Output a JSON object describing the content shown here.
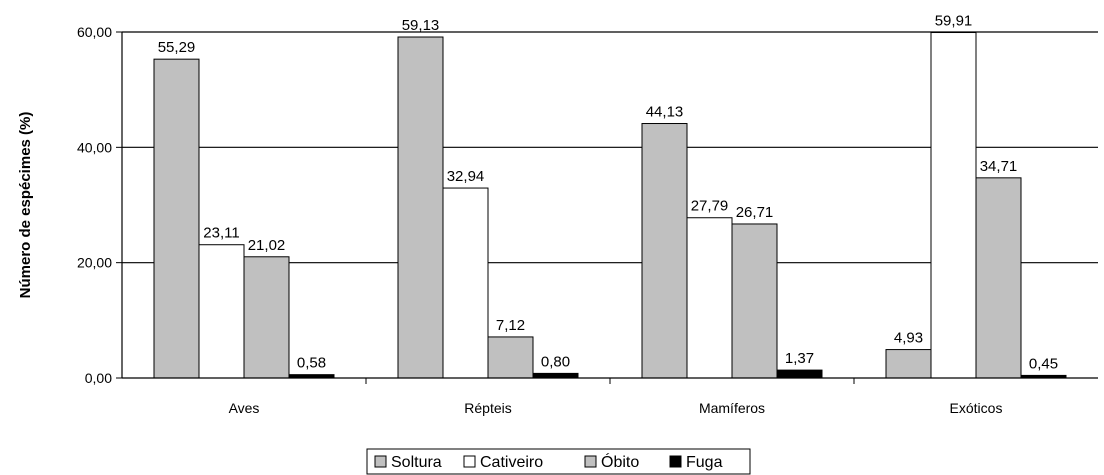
{
  "chart_data": {
    "type": "bar",
    "title": "",
    "xlabel": "",
    "ylabel": "Número de espécimes (%)",
    "ylim": [
      0,
      60
    ],
    "yticks": [
      "0,00",
      "20,00",
      "40,00",
      "60,00"
    ],
    "ytick_values": [
      0,
      20,
      40,
      60
    ],
    "grid": true,
    "legend_position": "bottom",
    "categories": [
      "Aves",
      "Répteis",
      "Mamíferos",
      "Exóticos"
    ],
    "series": [
      {
        "name": "Soltura",
        "color": "#c0c0c0",
        "values": [
          55.29,
          59.13,
          44.13,
          4.93
        ],
        "labels": [
          "55,29",
          "59,13",
          "44,13",
          "4,93"
        ]
      },
      {
        "name": "Cativeiro",
        "color": "#ffffff",
        "values": [
          23.11,
          32.94,
          27.79,
          59.91
        ],
        "labels": [
          "23,11",
          "32,94",
          "27,79",
          "59,91"
        ]
      },
      {
        "name": "Óbito",
        "color": "#c0c0c0",
        "values": [
          21.02,
          7.12,
          26.71,
          34.71
        ],
        "labels": [
          "21,02",
          "7,12",
          "26,71",
          "34,71"
        ]
      },
      {
        "name": "Fuga",
        "color": "#000000",
        "values": [
          0.58,
          0.8,
          1.37,
          0.45
        ],
        "labels": [
          "0,58",
          "0,80",
          "1,37",
          "0,45"
        ]
      }
    ]
  }
}
